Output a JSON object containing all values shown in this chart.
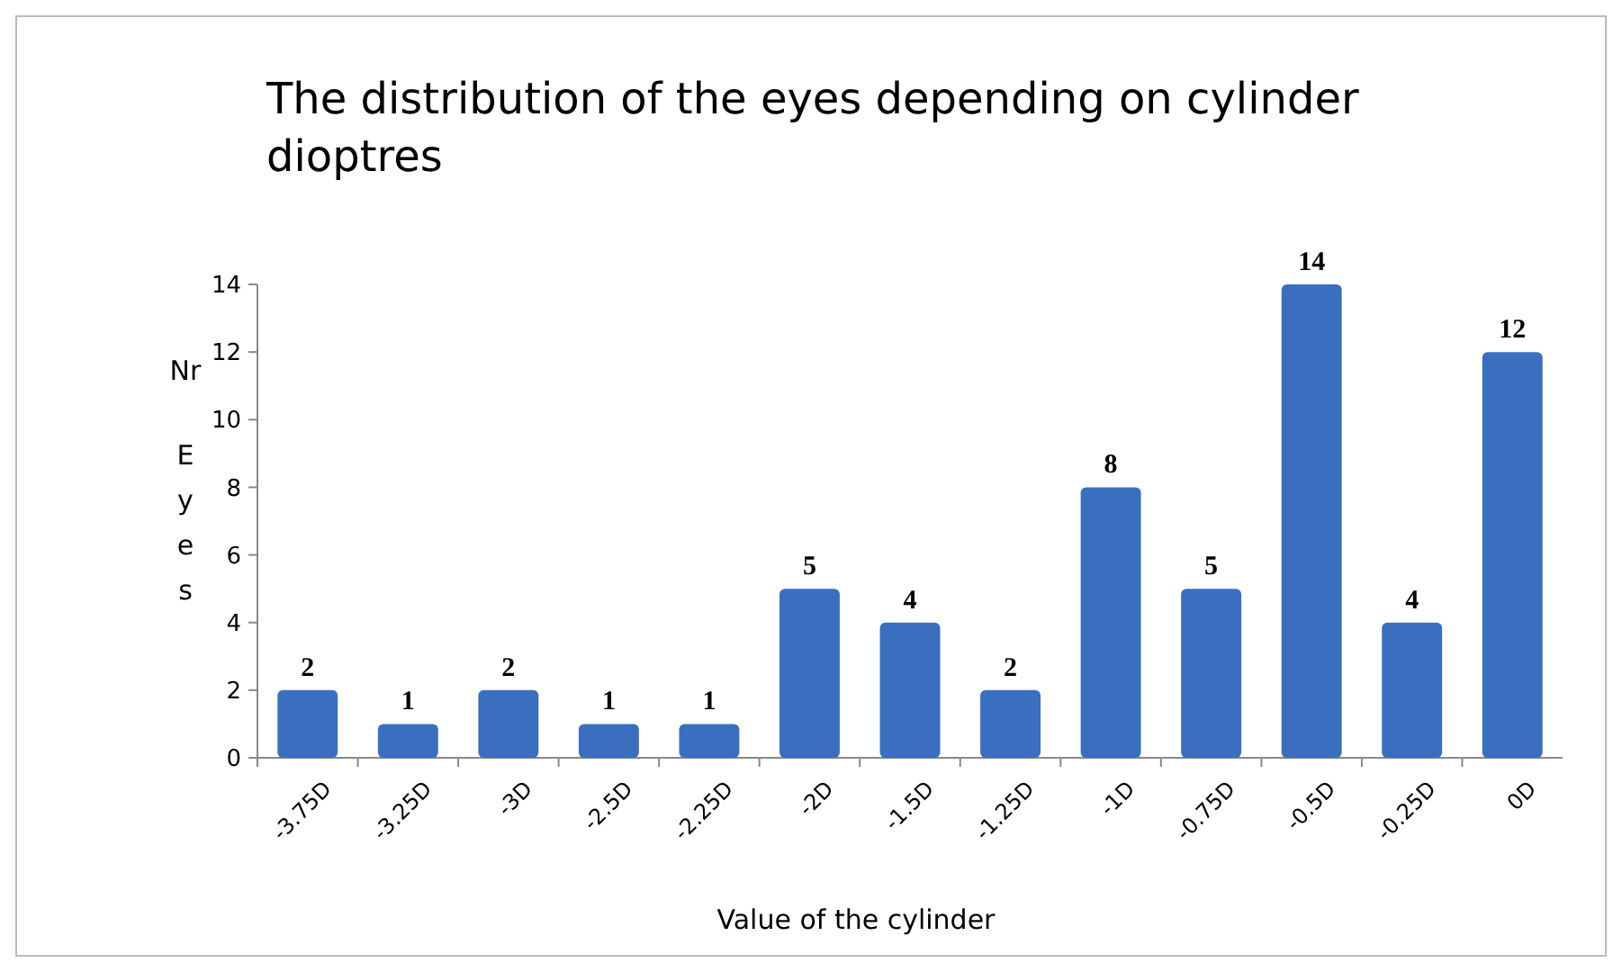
{
  "chart_data": {
    "type": "bar",
    "title": "The distribution of the eyes depending on cylinder dioptres",
    "xlabel": "Value of the cylinder",
    "ylabel": "Nr Eyes",
    "categories": [
      "-3.75D",
      "-3.25D",
      "-3D",
      "-2.5D",
      "-2.25D",
      "-2D",
      "-1.5D",
      "-1.25D",
      "-1D",
      "-0.75D",
      "-0.5D",
      "-0.25D",
      "0D"
    ],
    "values": [
      2,
      1,
      2,
      1,
      1,
      5,
      4,
      2,
      8,
      5,
      14,
      4,
      12
    ],
    "color": "#3a6fc0",
    "ylim": [
      0,
      14
    ],
    "yticks": [
      0,
      2,
      4,
      6,
      8,
      10,
      12,
      14
    ],
    "grid": false,
    "data_labels": true
  }
}
